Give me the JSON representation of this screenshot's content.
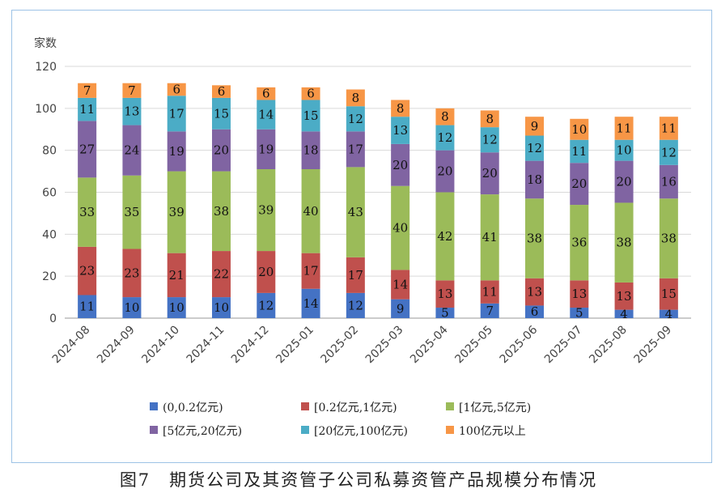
{
  "chart_data": {
    "type": "bar",
    "stacked": true,
    "ylabel": "家数",
    "ylim": [
      0,
      120
    ],
    "yticks": [
      0,
      20,
      40,
      60,
      80,
      100,
      120
    ],
    "grid": true,
    "legend_position": "bottom",
    "categories": [
      "2024-08",
      "2024-09",
      "2024-10",
      "2024-11",
      "2024-12",
      "2025-01",
      "2025-02",
      "2025-03",
      "2025-04",
      "2025-05",
      "2025-06",
      "2025-07",
      "2025-08",
      "2025-09"
    ],
    "series": [
      {
        "name": "(0,0.2亿元)",
        "color": "#4472c4",
        "values": [
          11,
          10,
          10,
          10,
          12,
          14,
          12,
          9,
          5,
          7,
          6,
          5,
          4,
          4
        ]
      },
      {
        "name": "[0.2亿元,1亿元)",
        "color": "#c0504d",
        "values": [
          23,
          23,
          21,
          22,
          20,
          17,
          17,
          14,
          13,
          11,
          13,
          13,
          13,
          15
        ]
      },
      {
        "name": "[1亿元,5亿元)",
        "color": "#9bbb59",
        "values": [
          33,
          35,
          39,
          38,
          39,
          40,
          43,
          40,
          42,
          41,
          38,
          36,
          38,
          38
        ]
      },
      {
        "name": "[5亿元,20亿元)",
        "color": "#8064a2",
        "values": [
          27,
          24,
          19,
          20,
          19,
          18,
          17,
          20,
          20,
          20,
          18,
          20,
          20,
          16
        ]
      },
      {
        "name": "[20亿元,100亿元)",
        "color": "#4bacc6",
        "values": [
          11,
          13,
          17,
          15,
          14,
          15,
          12,
          13,
          12,
          12,
          12,
          11,
          10,
          12
        ]
      },
      {
        "name": "100亿元以上",
        "color": "#f79646",
        "values": [
          7,
          7,
          6,
          6,
          6,
          6,
          8,
          8,
          8,
          8,
          9,
          10,
          11,
          11
        ]
      }
    ]
  },
  "caption": "图7　期货公司及其资管子公司私募资管产品规模分布情况"
}
